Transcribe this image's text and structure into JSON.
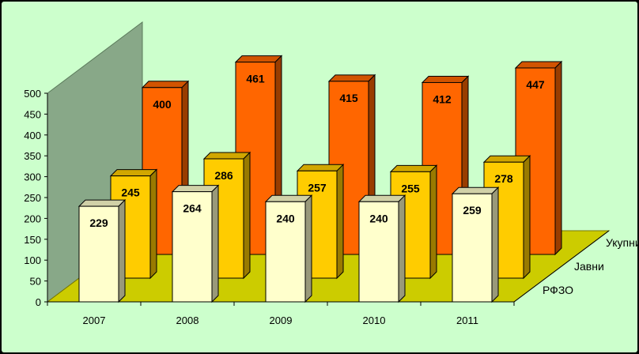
{
  "chart_data": {
    "type": "bar",
    "title": "",
    "xlabel": "",
    "ylabel": "",
    "categories": [
      "2007",
      "2008",
      "2009",
      "2010",
      "2011"
    ],
    "series": [
      {
        "name": "РФЗО",
        "values": [
          229,
          264,
          240,
          240,
          259
        ],
        "color": "#ffffcc"
      },
      {
        "name": "Јавни",
        "values": [
          245,
          286,
          257,
          255,
          278
        ],
        "color": "#ffcc00"
      },
      {
        "name": "Укупни",
        "values": [
          400,
          461,
          415,
          412,
          447
        ],
        "color": "#ff6600"
      }
    ],
    "ylim": [
      0,
      500
    ],
    "yticks": [
      0,
      50,
      100,
      150,
      200,
      250,
      300,
      350,
      400,
      450,
      500
    ],
    "grid": false,
    "wall_color": "#88a888",
    "floor_color": "#cccc00",
    "background": "#ccffcc"
  }
}
